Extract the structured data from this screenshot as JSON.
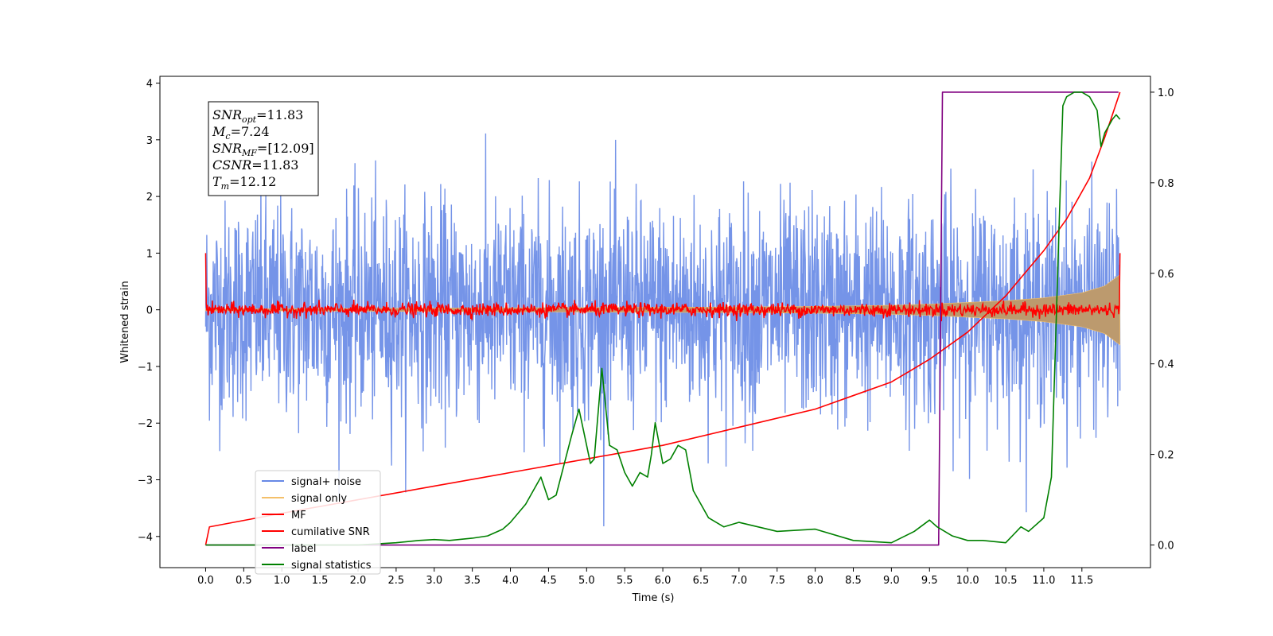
{
  "chart_data": {
    "type": "line",
    "xlabel": "Time (s)",
    "ylabel_left": "Whitened strain",
    "ylabel_right": "",
    "xlim": [
      -0.6,
      12.4
    ],
    "ylim_left": [
      -4.55,
      4.12
    ],
    "ylim_right": [
      -0.05,
      1.035
    ],
    "x_ticks": [
      "0.0",
      "0.5",
      "1.0",
      "1.5",
      "2.0",
      "2.5",
      "3.0",
      "3.5",
      "4.0",
      "4.5",
      "5.0",
      "5.5",
      "6.0",
      "6.5",
      "7.0",
      "7.5",
      "8.0",
      "8.5",
      "9.0",
      "9.5",
      "10.0",
      "10.5",
      "11.0",
      "11.5"
    ],
    "y_ticks_left": [
      "4",
      "3",
      "2",
      "1",
      "0",
      "−1",
      "−2",
      "−3",
      "−4"
    ],
    "y_ticks_right": [
      "1.0",
      "0.8",
      "0.6",
      "0.4",
      "0.2",
      "0.0"
    ],
    "grid": false,
    "legend_position": "lower-left",
    "colors": {
      "signal_noise": "#6688e6",
      "signal_only": "#f4c06a",
      "signal_band": "#bc9a6e",
      "mf": "#ff0000",
      "cumulative_snr": "#ff0000",
      "label": "#800080",
      "signal_statistics": "#008000"
    },
    "series": [
      {
        "name": "signal+ noise",
        "axis": "left",
        "description_envelope": {
          "x": [
            0,
            12
          ],
          "y_max_typical": 2.0,
          "y_min_typical": -2.2,
          "y_max_peak": 3.7,
          "y_min_peak": -4.1
        }
      },
      {
        "name": "signal only",
        "axis": "left",
        "envelope": {
          "x": [
            0,
            1,
            2,
            3,
            4,
            5,
            6,
            7,
            8,
            9,
            9.5,
            10,
            10.5,
            11,
            11.5,
            11.8,
            12.0
          ],
          "amplitude": [
            0.02,
            0.02,
            0.025,
            0.03,
            0.035,
            0.04,
            0.045,
            0.05,
            0.06,
            0.08,
            0.1,
            0.13,
            0.16,
            0.21,
            0.3,
            0.42,
            0.62
          ]
        }
      },
      {
        "name": "MF",
        "axis": "left",
        "x_range": [
          0,
          12
        ],
        "spike_start": 1.0,
        "spike_end": 1.0,
        "noise_amplitude": 0.12
      },
      {
        "name": "cumilative SNR",
        "axis": "right",
        "x": [
          0.0,
          0.05,
          1,
          2,
          3,
          4,
          5,
          6,
          7,
          8,
          8.5,
          9,
          9.5,
          10,
          10.5,
          11,
          11.3,
          11.6,
          11.8,
          12.0
        ],
        "y": [
          0.0,
          0.04,
          0.07,
          0.1,
          0.13,
          0.16,
          0.19,
          0.22,
          0.26,
          0.3,
          0.33,
          0.36,
          0.41,
          0.47,
          0.55,
          0.65,
          0.72,
          0.81,
          0.9,
          1.0
        ]
      },
      {
        "name": "label",
        "axis": "right",
        "x": [
          0.0,
          9.62,
          9.67,
          11.98
        ],
        "y": [
          0.0,
          0.0,
          1.0,
          1.0
        ]
      },
      {
        "name": "signal statistics",
        "axis": "right",
        "x": [
          0.0,
          0.5,
          1.0,
          1.5,
          2.0,
          2.5,
          2.8,
          3.0,
          3.2,
          3.5,
          3.7,
          3.9,
          4.0,
          4.1,
          4.2,
          4.3,
          4.4,
          4.5,
          4.6,
          4.8,
          4.9,
          5.0,
          5.05,
          5.1,
          5.2,
          5.3,
          5.4,
          5.5,
          5.6,
          5.7,
          5.8,
          5.85,
          5.9,
          6.0,
          6.1,
          6.2,
          6.3,
          6.4,
          6.5,
          6.6,
          6.8,
          7.0,
          7.5,
          8.0,
          8.5,
          9.0,
          9.3,
          9.5,
          9.6,
          9.7,
          9.8,
          10.0,
          10.2,
          10.5,
          10.7,
          10.8,
          11.0,
          11.1,
          11.2,
          11.25,
          11.3,
          11.4,
          11.5,
          11.6,
          11.7,
          11.75,
          11.8,
          11.9,
          11.95,
          12.0
        ],
        "y": [
          0.0,
          0.0,
          0.0,
          0.0,
          0.0,
          0.005,
          0.01,
          0.012,
          0.01,
          0.015,
          0.02,
          0.035,
          0.05,
          0.07,
          0.09,
          0.12,
          0.15,
          0.1,
          0.11,
          0.24,
          0.3,
          0.22,
          0.18,
          0.19,
          0.39,
          0.22,
          0.21,
          0.16,
          0.13,
          0.16,
          0.15,
          0.2,
          0.27,
          0.18,
          0.19,
          0.22,
          0.21,
          0.12,
          0.09,
          0.06,
          0.04,
          0.05,
          0.03,
          0.035,
          0.01,
          0.005,
          0.03,
          0.055,
          0.04,
          0.03,
          0.02,
          0.01,
          0.01,
          0.005,
          0.04,
          0.03,
          0.06,
          0.15,
          0.7,
          0.97,
          0.99,
          1.0,
          1.0,
          0.99,
          0.96,
          0.88,
          0.91,
          0.94,
          0.95,
          0.94
        ]
      }
    ],
    "legend": [
      {
        "label": "signal+ noise",
        "color_key": "signal_noise"
      },
      {
        "label": "signal only",
        "color_key": "signal_only"
      },
      {
        "label": "MF",
        "color_key": "mf"
      },
      {
        "label": "cumilative SNR",
        "color_key": "cumulative_snr"
      },
      {
        "label": "label",
        "color_key": "label"
      },
      {
        "label": "signal statistics",
        "color_key": "signal_statistics"
      }
    ],
    "annotation": {
      "lines": [
        {
          "var": "SNR",
          "sub": "opt",
          "value": "=11.83"
        },
        {
          "var": "M",
          "sub": "c",
          "value": "=7.24"
        },
        {
          "var": "SNR",
          "sub": "MF",
          "value": "=[12.09]"
        },
        {
          "var": "CSNR",
          "sub": "",
          "value": "=11.83"
        },
        {
          "var": "T",
          "sub": "m",
          "value": "=12.12"
        }
      ]
    }
  }
}
